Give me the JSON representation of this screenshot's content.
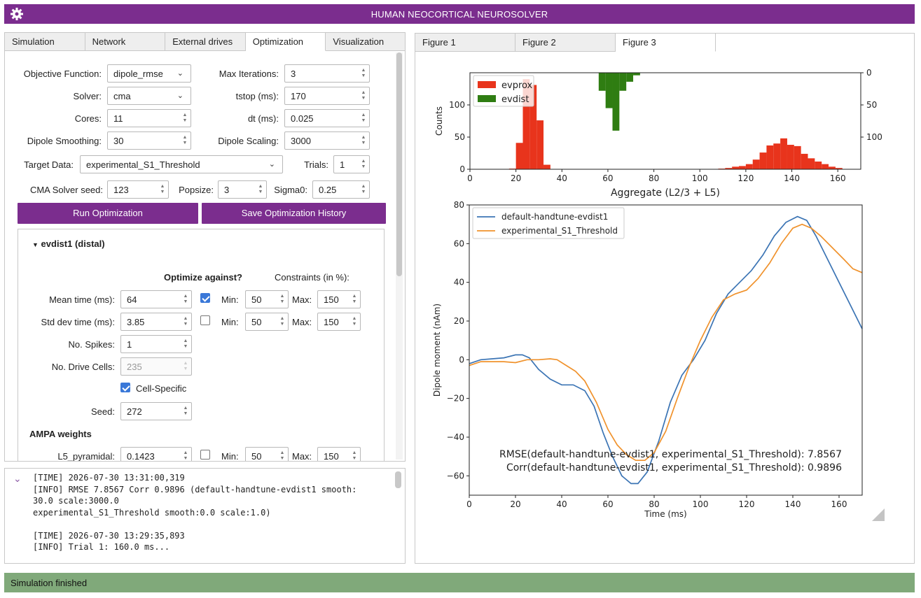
{
  "app": {
    "title": "HUMAN NEOCORTICAL NEUROSOLVER"
  },
  "left_tabs": [
    "Simulation",
    "Network",
    "External drives",
    "Optimization",
    "Visualization"
  ],
  "optimization": {
    "objective_label": "Objective Function:",
    "objective_value": "dipole_rmse",
    "maxiter_label": "Max Iterations:",
    "maxiter_value": "3",
    "solver_label": "Solver:",
    "solver_value": "cma",
    "tstop_label": "tstop (ms):",
    "tstop_value": "170",
    "cores_label": "Cores:",
    "cores_value": "11",
    "dt_label": "dt (ms):",
    "dt_value": "0.025",
    "smooth_label": "Dipole Smoothing:",
    "smooth_value": "30",
    "scaling_label": "Dipole Scaling:",
    "scaling_value": "3000",
    "target_label": "Target Data:",
    "target_value": "experimental_S1_Threshold",
    "trials_label": "Trials:",
    "trials_value": "1",
    "seed_label": "CMA Solver seed:",
    "seed_value": "123",
    "popsize_label": "Popsize:",
    "popsize_value": "3",
    "sigma_label": "Sigma0:",
    "sigma_value": "0.25",
    "run_button": "Run Optimization",
    "save_button": "Save Optimization History"
  },
  "drive": {
    "header": "evdist1 (distal)",
    "optimize_against": "Optimize against?",
    "constraints": "Constraints (in %):",
    "min_label": "Min:",
    "max_label": "Max:",
    "mean_label": "Mean time (ms):",
    "mean_value": "64",
    "mean_checked": true,
    "mean_min": "50",
    "mean_max": "150",
    "std_label": "Std dev time (ms):",
    "std_value": "3.85",
    "std_checked": false,
    "std_min": "50",
    "std_max": "150",
    "spikes_label": "No. Spikes:",
    "spikes_value": "1",
    "cells_label": "No. Drive Cells:",
    "cells_value": "235",
    "cellspecific_label": "Cell-Specific",
    "cellspecific_checked": true,
    "seed_label": "Seed:",
    "seed_value": "272",
    "ampa_label": "AMPA weights",
    "l5_label": "L5_pyramidal:",
    "l5_value": "0.1423",
    "l5_checked": false,
    "l5_min": "50",
    "l5_max": "150"
  },
  "log": {
    "lines": [
      "[TIME] 2026-07-30 13:31:00,319",
      "[INFO] RMSE 7.8567 Corr 0.9896 (default-handtune-evdist1 smooth:",
      "30.0 scale:3000.0",
      "experimental_S1_Threshold smooth:0.0 scale:1.0)",
      "",
      "[TIME] 2026-07-30 13:29:35,893",
      "[INFO] Trial 1: 160.0 ms..."
    ]
  },
  "right_tabs": [
    "Figure 1",
    "Figure 2",
    "Figure 3"
  ],
  "status": "Simulation finished",
  "chart_data": [
    {
      "type": "bar",
      "xlabel": "Aggregate (L2/3 + L5)",
      "ylabel": "Counts",
      "xlim": [
        0,
        170
      ],
      "ylim": [
        0,
        150
      ],
      "xticks": [
        0,
        20,
        40,
        60,
        80,
        100,
        120,
        140,
        160
      ],
      "yticks": [
        0,
        50,
        100
      ],
      "right_yticks": [
        0,
        50,
        100
      ],
      "legend_placement": "top-left",
      "bin_width": 3,
      "series": [
        {
          "name": "evprox",
          "color": "#e8341c",
          "direction": "up",
          "bins": [
            [
              17,
              1
            ],
            [
              20,
              41
            ],
            [
              23,
              140
            ],
            [
              26,
              131
            ],
            [
              29,
              76
            ],
            [
              32,
              7
            ],
            [
              108,
              1
            ],
            [
              111,
              2
            ],
            [
              114,
              4
            ],
            [
              117,
              5
            ],
            [
              120,
              8
            ],
            [
              123,
              15
            ],
            [
              126,
              26
            ],
            [
              129,
              37
            ],
            [
              132,
              40
            ],
            [
              135,
              48
            ],
            [
              138,
              38
            ],
            [
              141,
              36
            ],
            [
              144,
              24
            ],
            [
              147,
              17
            ],
            [
              150,
              12
            ],
            [
              153,
              8
            ],
            [
              156,
              4
            ],
            [
              159,
              2
            ]
          ]
        },
        {
          "name": "evdist",
          "color": "#2f7d12",
          "direction": "down",
          "bins": [
            [
              56,
              28
            ],
            [
              59,
              55
            ],
            [
              62,
              90
            ],
            [
              65,
              28
            ],
            [
              68,
              14
            ],
            [
              71,
              4
            ]
          ]
        }
      ]
    },
    {
      "type": "line",
      "xlabel": "Time (ms)",
      "ylabel": "Dipole moment (nAm)",
      "xlim": [
        0,
        170
      ],
      "ylim": [
        -70,
        80
      ],
      "xticks": [
        0,
        20,
        40,
        60,
        80,
        100,
        120,
        140,
        160
      ],
      "yticks": [
        -60,
        -40,
        -20,
        0,
        20,
        40,
        60,
        80
      ],
      "legend_placement": "top-left",
      "series": [
        {
          "name": "default-handtune-evdist1",
          "color": "#3b74b4",
          "points": [
            [
              0,
              -2
            ],
            [
              5,
              0
            ],
            [
              10,
              0.5
            ],
            [
              15,
              1
            ],
            [
              20,
              2.5
            ],
            [
              23,
              2.5
            ],
            [
              26,
              1
            ],
            [
              30,
              -5
            ],
            [
              35,
              -10
            ],
            [
              40,
              -13
            ],
            [
              45,
              -13
            ],
            [
              50,
              -16
            ],
            [
              54,
              -24
            ],
            [
              58,
              -38
            ],
            [
              62,
              -50
            ],
            [
              66,
              -60
            ],
            [
              70,
              -64
            ],
            [
              73,
              -64
            ],
            [
              77,
              -58
            ],
            [
              82,
              -42
            ],
            [
              87,
              -22
            ],
            [
              92,
              -8
            ],
            [
              97,
              0
            ],
            [
              102,
              10
            ],
            [
              107,
              24
            ],
            [
              112,
              34
            ],
            [
              117,
              40
            ],
            [
              122,
              46
            ],
            [
              127,
              54
            ],
            [
              132,
              64
            ],
            [
              137,
              71
            ],
            [
              142,
              74
            ],
            [
              146,
              72
            ],
            [
              150,
              64
            ],
            [
              155,
              52
            ],
            [
              160,
              40
            ],
            [
              165,
              28
            ],
            [
              170,
              16
            ]
          ]
        },
        {
          "name": "experimental_S1_Threshold",
          "color": "#f0922c",
          "points": [
            [
              0,
              -3
            ],
            [
              5,
              -1
            ],
            [
              10,
              -1
            ],
            [
              15,
              -1
            ],
            [
              20,
              -1.5
            ],
            [
              25,
              0
            ],
            [
              30,
              0
            ],
            [
              35,
              0.5
            ],
            [
              38,
              0
            ],
            [
              42,
              -3
            ],
            [
              46,
              -6
            ],
            [
              50,
              -11
            ],
            [
              55,
              -22
            ],
            [
              60,
              -36
            ],
            [
              64,
              -44
            ],
            [
              68,
              -49
            ],
            [
              72,
              -52
            ],
            [
              76,
              -52
            ],
            [
              80,
              -48
            ],
            [
              85,
              -37
            ],
            [
              90,
              -20
            ],
            [
              95,
              -4
            ],
            [
              100,
              10
            ],
            [
              105,
              22
            ],
            [
              110,
              31
            ],
            [
              115,
              34
            ],
            [
              120,
              36
            ],
            [
              125,
              42
            ],
            [
              130,
              50
            ],
            [
              135,
              60
            ],
            [
              140,
              68
            ],
            [
              144,
              70
            ],
            [
              148,
              68
            ],
            [
              152,
              64
            ],
            [
              157,
              58
            ],
            [
              162,
              52
            ],
            [
              166,
              47
            ],
            [
              170,
              45
            ]
          ]
        }
      ],
      "annotations": [
        "RMSE(default-handtune-evdist1, experimental_S1_Threshold): 7.8567",
        "Corr(default-handtune-evdist1, experimental_S1_Threshold): 0.9896"
      ]
    }
  ]
}
